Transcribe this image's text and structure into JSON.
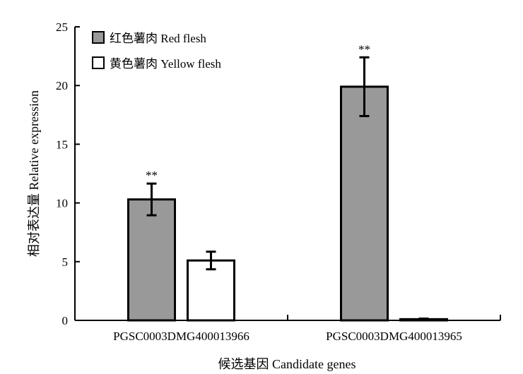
{
  "chart_data": {
    "type": "bar",
    "title": "",
    "xlabel": "候选基因 Candidate genes",
    "ylabel": "相对表达量 Relative expression",
    "ylim": [
      0,
      25
    ],
    "yticks": [
      0,
      5,
      10,
      15,
      20,
      25
    ],
    "categories": [
      "PGSC0003DMG400013966",
      "PGSC0003DMG400013965"
    ],
    "series": [
      {
        "name": "红色薯肉 Red flesh",
        "color": "#999999",
        "values": [
          10.3,
          19.9
        ],
        "errors": [
          1.35,
          2.5
        ],
        "annotations": [
          "**",
          "**"
        ]
      },
      {
        "name": "黄色薯肉 Yellow flesh",
        "color": "#ffffff",
        "values": [
          5.1,
          0.1
        ],
        "errors": [
          0.75,
          0.05
        ],
        "annotations": [
          "",
          ""
        ]
      }
    ],
    "legend_position": "top-left",
    "grid": false
  }
}
